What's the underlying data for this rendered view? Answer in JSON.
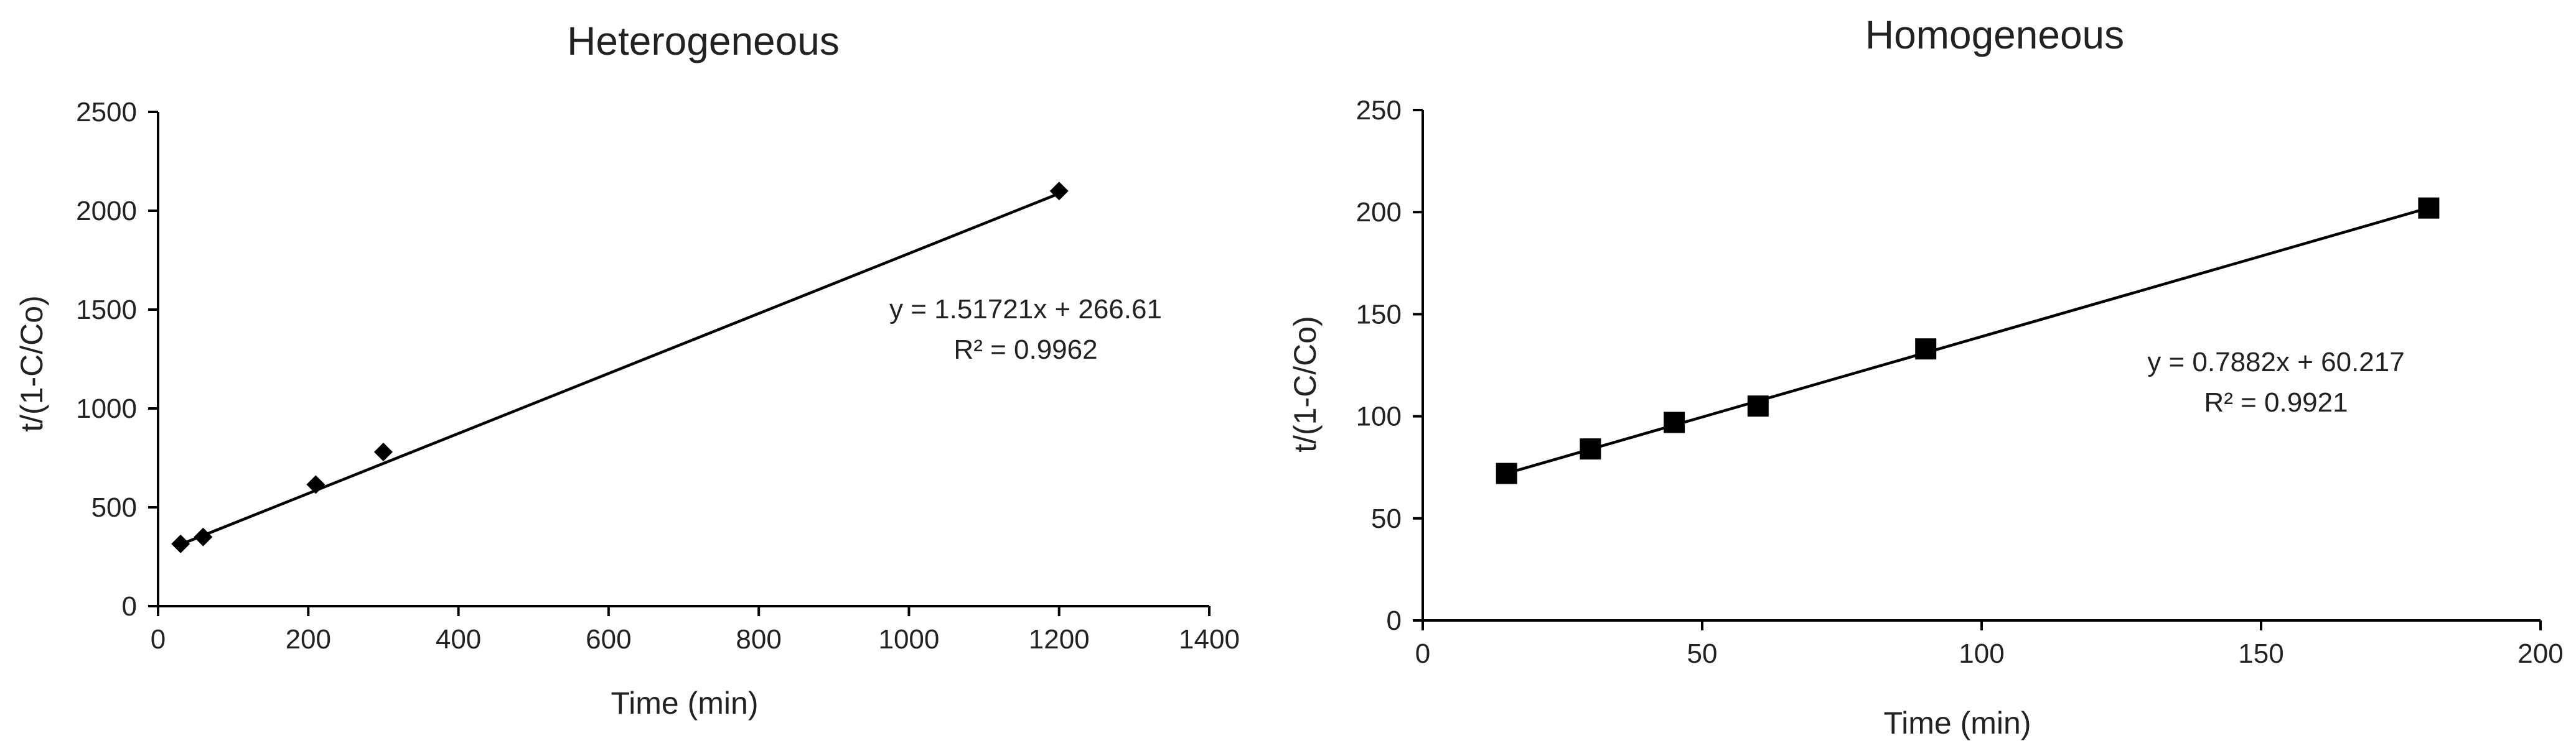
{
  "chart_data": [
    {
      "type": "scatter",
      "title": "Heterogeneous",
      "xlabel": "Time (min)",
      "ylabel": "t/(1-C/Co)",
      "xlim": [
        0,
        1400
      ],
      "ylim": [
        0,
        2500
      ],
      "x_ticks": [
        0,
        200,
        400,
        600,
        800,
        1000,
        1200,
        1400
      ],
      "y_ticks": [
        0,
        500,
        1000,
        1500,
        2000,
        2500
      ],
      "marker": "diamond",
      "x": [
        30,
        60,
        210,
        300,
        1200
      ],
      "y": [
        315,
        350,
        615,
        780,
        2100
      ],
      "trendline": {
        "type": "linear",
        "slope": 1.51721,
        "intercept": 266.61,
        "x_range": [
          30,
          1200
        ],
        "equation_label": "y = 1.51721x + 266.61",
        "r2_label": "R² = 0.9962"
      },
      "grid": false,
      "legend": "none"
    },
    {
      "type": "scatter",
      "title": "Homogeneous",
      "xlabel": "Time (min)",
      "ylabel": "t/(1-C/Co)",
      "xlim": [
        0,
        200
      ],
      "ylim": [
        0,
        250
      ],
      "x_ticks": [
        0,
        50,
        100,
        150,
        200
      ],
      "y_ticks": [
        0,
        50,
        100,
        150,
        200,
        250
      ],
      "marker": "square",
      "x": [
        15,
        30,
        45,
        60,
        90,
        180
      ],
      "y": [
        72,
        84,
        97,
        105,
        133,
        202
      ],
      "trendline": {
        "type": "linear",
        "slope": 0.7882,
        "intercept": 60.217,
        "x_range": [
          15,
          180
        ],
        "equation_label": "y = 0.7882x + 60.217",
        "r2_label": "R² = 0.9921"
      },
      "grid": false,
      "legend": "none"
    }
  ]
}
